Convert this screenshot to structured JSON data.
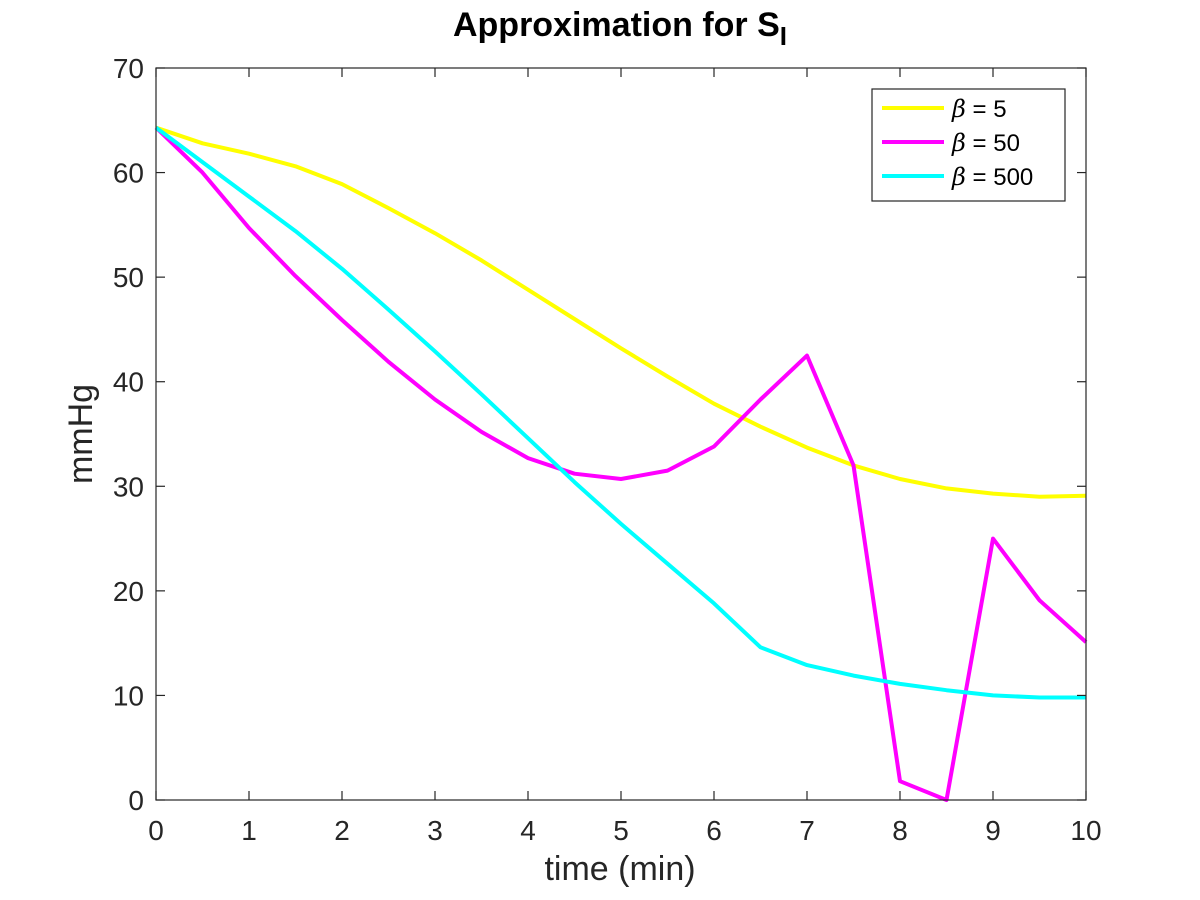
{
  "chart_data": {
    "type": "line",
    "title": "Approximation for S",
    "title_subscript": "I",
    "xlabel": "time (min)",
    "ylabel": "mmHg",
    "xlim": [
      0,
      10
    ],
    "ylim": [
      0,
      70
    ],
    "xticks": [
      0,
      1,
      2,
      3,
      4,
      5,
      6,
      7,
      8,
      9,
      10
    ],
    "yticks": [
      0,
      10,
      20,
      30,
      40,
      50,
      60,
      70
    ],
    "grid": false,
    "legend_position": "top-right",
    "series": [
      {
        "name": "β = 5",
        "name_symbol": "β",
        "name_rest": " = 5",
        "color": "#ffff00",
        "x": [
          0,
          0.5,
          1,
          1.5,
          2,
          2.5,
          3,
          3.5,
          4,
          4.5,
          5,
          5.5,
          6,
          6.5,
          7,
          7.5,
          8,
          8.5,
          9,
          9.5,
          10
        ],
        "y": [
          64.3,
          62.8,
          61.8,
          60.6,
          58.9,
          56.6,
          54.2,
          51.6,
          48.8,
          46.0,
          43.2,
          40.5,
          37.9,
          35.7,
          33.7,
          32.0,
          30.7,
          29.8,
          29.3,
          29.0,
          29.1
        ]
      },
      {
        "name": "β = 50",
        "name_symbol": "β",
        "name_rest": " = 50",
        "color": "#ff00ff",
        "x": [
          0,
          0.5,
          1,
          1.5,
          2,
          2.5,
          3,
          3.5,
          4,
          4.5,
          5,
          5.5,
          6,
          6.5,
          7,
          7.5,
          8,
          8.5,
          9,
          9.5,
          10
        ],
        "y": [
          64.3,
          60.0,
          54.7,
          50.1,
          45.9,
          41.9,
          38.3,
          35.2,
          32.7,
          31.2,
          30.7,
          31.5,
          33.8,
          38.3,
          42.5,
          32.0,
          1.8,
          0.0,
          25.0,
          19.1,
          15.1
        ]
      },
      {
        "name": "β = 500",
        "name_symbol": "β",
        "name_rest": " = 500",
        "color": "#00ffff",
        "x": [
          0,
          0.5,
          1,
          1.5,
          2,
          2.5,
          3,
          3.5,
          4,
          4.5,
          5,
          5.5,
          6,
          6.5,
          7,
          7.5,
          8,
          8.5,
          9,
          9.5,
          10
        ],
        "y": [
          64.3,
          61.0,
          57.7,
          54.4,
          50.8,
          46.9,
          42.9,
          38.8,
          34.6,
          30.4,
          26.4,
          22.6,
          18.8,
          14.6,
          12.9,
          11.9,
          11.1,
          10.5,
          10.0,
          9.8,
          9.8
        ]
      }
    ]
  }
}
